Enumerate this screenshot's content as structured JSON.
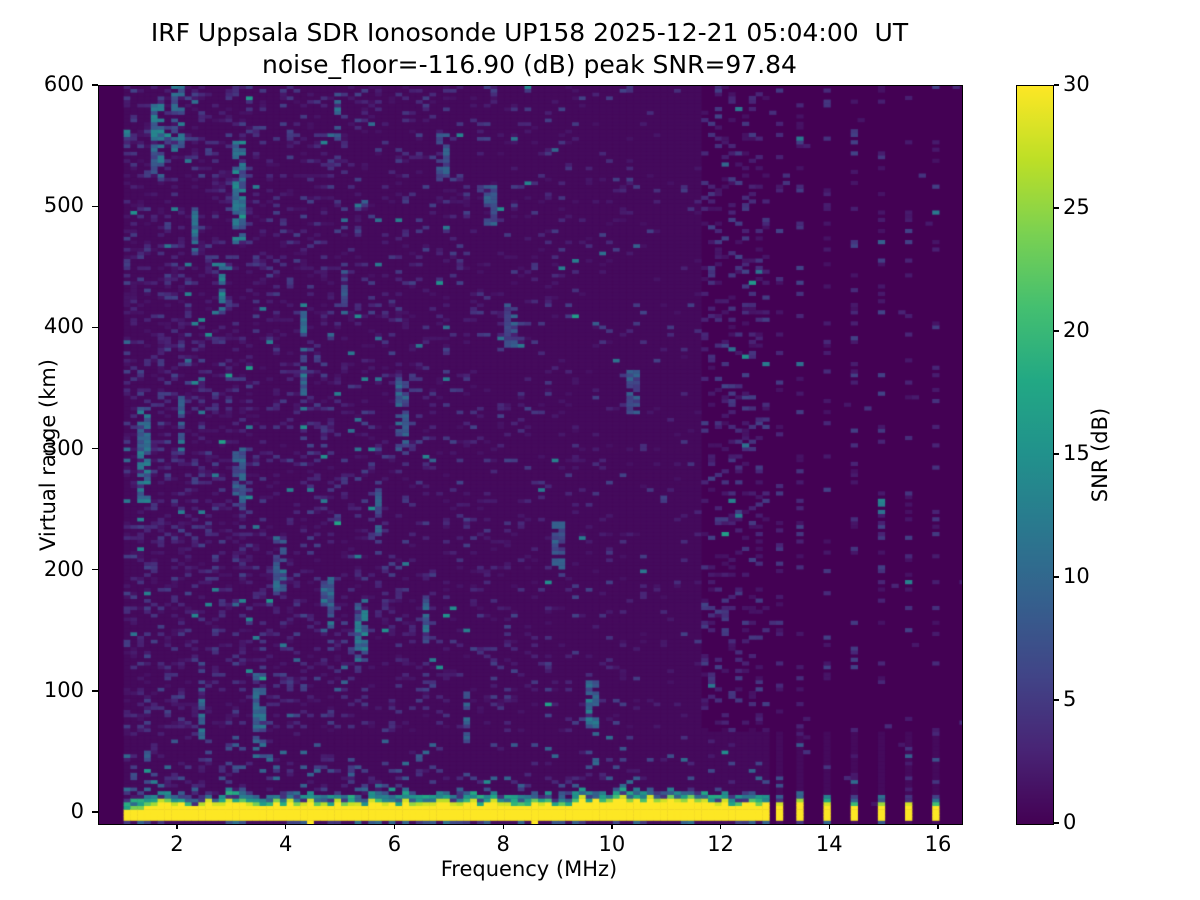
{
  "figure": {
    "title_line1": "IRF Uppsala SDR Ionosonde UP158 2025-12-21 05:04:00  UT",
    "title_line2": "noise_floor=-116.90 (dB) peak SNR=97.84",
    "background": "#ffffff"
  },
  "chart_data": {
    "type": "heatmap",
    "title": "IRF Uppsala SDR Ionosonde UP158 2025-12-21 05:04:00  UT",
    "subtitle": "noise_floor=-116.90 (dB) peak SNR=97.84",
    "station": "IRF Uppsala SDR Ionosonde UP158",
    "timestamp_ut": "2025-12-21 05:04:00",
    "noise_floor_db": -116.9,
    "peak_snr_db": 97.84,
    "xlabel": "Frequency (MHz)",
    "ylabel": "Virtual range (km)",
    "xlim": [
      0.547,
      16.423
    ],
    "ylim": [
      -9,
      600
    ],
    "xticks": [
      2,
      4,
      6,
      8,
      10,
      12,
      14,
      16
    ],
    "yticks": [
      0,
      100,
      200,
      300,
      400,
      500,
      600
    ],
    "grid": false,
    "colorbar": {
      "label": "SNR (dB)",
      "ticks": [
        0,
        5,
        10,
        15,
        20,
        25,
        30
      ],
      "range": [
        0,
        30
      ],
      "colormap": "viridis"
    },
    "colormap_stops": [
      "#440154",
      "#482475",
      "#414487",
      "#355f8d",
      "#2a788e",
      "#21918c",
      "#22a884",
      "#44bf70",
      "#7ad151",
      "#bddf26",
      "#fde725"
    ],
    "data_region": {
      "freq_start_mhz": 1.0,
      "freq_end_mhz": 16.38
    },
    "ground_echo_band": {
      "freq_start_mhz": 1.0,
      "freq_end_mhz": 11.58,
      "range_km": [
        -6,
        10
      ],
      "snr_db": 30,
      "top_fringe_km": [
        10,
        22
      ],
      "top_fringe_snr_db": 15,
      "raised_top_freq_mhz": [
        9.2,
        11.58
      ]
    },
    "discrete_stripe_freqs_mhz": [
      11.68,
      11.87,
      12.06,
      12.25,
      12.44,
      12.63,
      12.82,
      13.02,
      13.48,
      13.98,
      14.48,
      14.98,
      15.45,
      15.93
    ],
    "discrete_stripe_range_km": [
      -7,
      9
    ],
    "noise_streaks": [
      {
        "f": 1.35,
        "km": [
          255,
          335
        ],
        "snr": 12
      },
      {
        "f": 1.62,
        "km": [
          525,
          585
        ],
        "snr": 13
      },
      {
        "f": 2.02,
        "km": [
          545,
          600
        ],
        "snr": 12
      },
      {
        "f": 2.05,
        "km": [
          295,
          345
        ],
        "snr": 10
      },
      {
        "f": 2.3,
        "km": [
          455,
          500
        ],
        "snr": 12
      },
      {
        "f": 2.45,
        "km": [
          60,
          125
        ],
        "snr": 11
      },
      {
        "f": 2.78,
        "km": [
          415,
          465
        ],
        "snr": 14
      },
      {
        "f": 3.1,
        "km": [
          470,
          555
        ],
        "snr": 13
      },
      {
        "f": 3.15,
        "km": [
          250,
          300
        ],
        "snr": 10
      },
      {
        "f": 3.5,
        "km": [
          45,
          115
        ],
        "snr": 11
      },
      {
        "f": 3.85,
        "km": [
          180,
          230
        ],
        "snr": 10
      },
      {
        "f": 4.3,
        "km": [
          345,
          420
        ],
        "snr": 12
      },
      {
        "f": 4.75,
        "km": [
          150,
          195
        ],
        "snr": 11
      },
      {
        "f": 4.95,
        "km": [
          555,
          595
        ],
        "snr": 11
      },
      {
        "f": 5.05,
        "km": [
          410,
          450
        ],
        "snr": 10
      },
      {
        "f": 5.35,
        "km": [
          125,
          175
        ],
        "snr": 13
      },
      {
        "f": 5.7,
        "km": [
          230,
          270
        ],
        "snr": 9
      },
      {
        "f": 6.1,
        "km": [
          300,
          360
        ],
        "snr": 10
      },
      {
        "f": 6.55,
        "km": [
          140,
          180
        ],
        "snr": 10
      },
      {
        "f": 6.9,
        "km": [
          525,
          560
        ],
        "snr": 9
      },
      {
        "f": 7.3,
        "km": [
          55,
          100
        ],
        "snr": 10
      },
      {
        "f": 7.75,
        "km": [
          480,
          520
        ],
        "snr": 9
      },
      {
        "f": 8.1,
        "km": [
          385,
          420
        ],
        "snr": 9
      },
      {
        "f": 9.0,
        "km": [
          200,
          240
        ],
        "snr": 9
      },
      {
        "f": 9.65,
        "km": [
          70,
          110
        ],
        "snr": 12
      },
      {
        "f": 10.4,
        "km": [
          330,
          365
        ],
        "snr": 9
      }
    ],
    "render": {
      "seed": 11,
      "freq_cell_mhz": 0.125,
      "range_cell_km": 3.05,
      "base_noise_db": 0.75
    }
  }
}
